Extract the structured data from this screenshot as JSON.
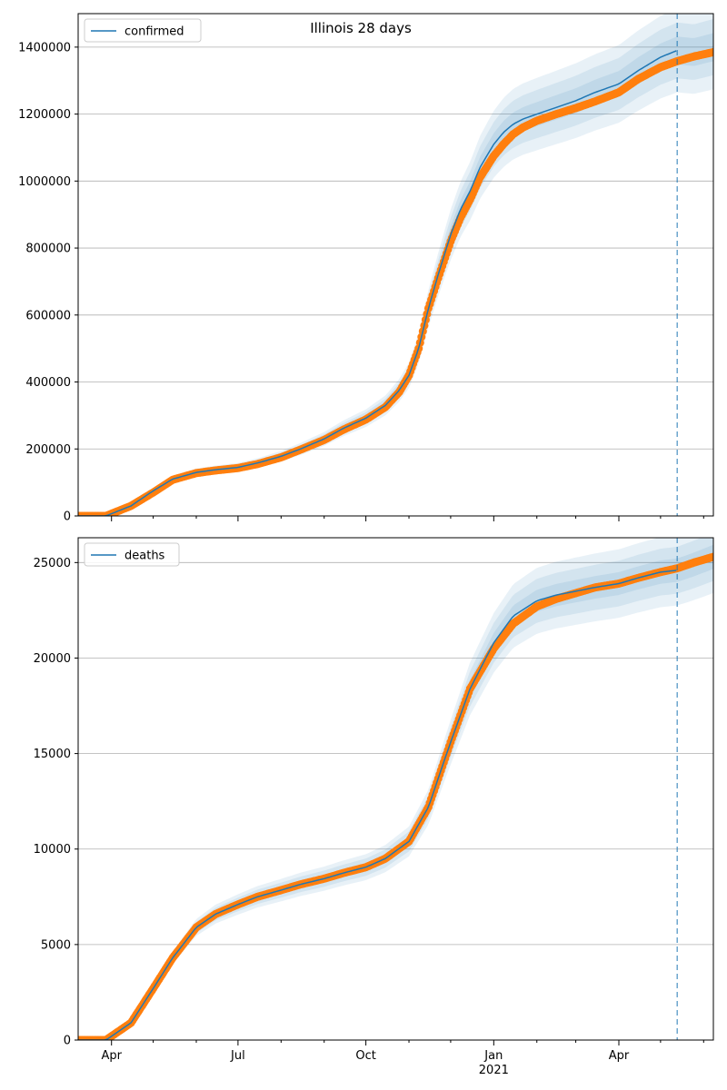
{
  "title": "Illinois 28 days",
  "colors": {
    "model_line": "#1f77b4",
    "band": "#1f77b4",
    "observed": "#ff7f0e",
    "grid": "#b0b0b0",
    "forecast_marker": "#1f77b4"
  },
  "x_axis": {
    "range": [
      "2020-03-08",
      "2021-06-08"
    ],
    "major_ticks": [
      {
        "date": "2020-04-01",
        "label": "Apr",
        "sublabel": ""
      },
      {
        "date": "2020-07-01",
        "label": "Jul",
        "sublabel": ""
      },
      {
        "date": "2020-10-01",
        "label": "Oct",
        "sublabel": ""
      },
      {
        "date": "2021-01-01",
        "label": "Jan",
        "sublabel": "2021"
      },
      {
        "date": "2021-04-01",
        "label": "Apr",
        "sublabel": ""
      }
    ],
    "minor_ticks": [
      "2020-05-01",
      "2020-06-01",
      "2020-08-01",
      "2020-09-01",
      "2020-11-01",
      "2020-12-01",
      "2021-02-01",
      "2021-03-01",
      "2021-05-01",
      "2021-06-01"
    ],
    "forecast_start": "2021-05-13"
  },
  "chart_data": [
    {
      "type": "line",
      "legend": "confirmed",
      "legend_position": "top-left",
      "grid": "horizontal",
      "ylim": [
        0,
        1500000
      ],
      "yticks": [
        0,
        200000,
        400000,
        600000,
        800000,
        1000000,
        1200000,
        1400000
      ],
      "ytick_labels": [
        "0",
        "200000",
        "400000",
        "600000",
        "800000",
        "1000000",
        "1200000",
        "1400000"
      ],
      "model": {
        "name": "confirmed",
        "dates": [
          "2020-03-08",
          "2020-03-28",
          "2020-04-15",
          "2020-05-01",
          "2020-05-15",
          "2020-06-01",
          "2020-06-15",
          "2020-07-01",
          "2020-07-15",
          "2020-08-01",
          "2020-08-15",
          "2020-09-01",
          "2020-09-15",
          "2020-10-01",
          "2020-10-15",
          "2020-10-25",
          "2020-11-01",
          "2020-11-08",
          "2020-11-15",
          "2020-11-22",
          "2020-12-01",
          "2020-12-08",
          "2020-12-15",
          "2020-12-22",
          "2021-01-01",
          "2021-01-08",
          "2021-01-15",
          "2021-01-22",
          "2021-02-01",
          "2021-02-15",
          "2021-03-01",
          "2021-03-15",
          "2021-04-01",
          "2021-04-15",
          "2021-05-01",
          "2021-05-13"
        ],
        "values": [
          0,
          0,
          30000,
          75000,
          110000,
          130000,
          138000,
          145000,
          158000,
          178000,
          200000,
          230000,
          262000,
          292000,
          330000,
          375000,
          420000,
          500000,
          620000,
          720000,
          840000,
          915000,
          970000,
          1040000,
          1110000,
          1145000,
          1170000,
          1185000,
          1200000,
          1220000,
          1240000,
          1265000,
          1290000,
          1330000,
          1370000,
          1390000
        ]
      },
      "model_tail": {
        "dates": [
          "2021-05-13",
          "2021-05-25",
          "2021-06-08"
        ],
        "values": [
          1390000,
          1385000,
          1400000
        ]
      },
      "band_scale": [
        0.03,
        0.06,
        0.09
      ],
      "observed": {
        "dates": [
          "2020-03-08",
          "2020-03-28",
          "2020-04-15",
          "2020-05-01",
          "2020-05-15",
          "2020-06-01",
          "2020-06-15",
          "2020-07-01",
          "2020-07-15",
          "2020-08-01",
          "2020-08-15",
          "2020-09-01",
          "2020-09-15",
          "2020-10-01",
          "2020-10-15",
          "2020-10-25",
          "2020-11-01",
          "2020-11-08",
          "2020-11-15",
          "2020-11-22",
          "2020-12-01",
          "2020-12-08",
          "2020-12-15",
          "2020-12-22",
          "2021-01-01",
          "2021-01-08",
          "2021-01-15",
          "2021-01-22",
          "2021-02-01",
          "2021-02-15",
          "2021-03-01",
          "2021-03-15",
          "2021-04-01",
          "2021-04-15",
          "2021-05-01",
          "2021-05-13",
          "2021-05-25",
          "2021-06-08"
        ],
        "values": [
          0,
          0,
          30000,
          70000,
          108000,
          128000,
          136000,
          143000,
          155000,
          175000,
          198000,
          227000,
          258000,
          288000,
          325000,
          370000,
          420000,
          500000,
          620000,
          710000,
          820000,
          890000,
          945000,
          1010000,
          1075000,
          1110000,
          1140000,
          1160000,
          1180000,
          1200000,
          1218000,
          1238000,
          1265000,
          1305000,
          1340000,
          1358000,
          1372000,
          1385000
        ]
      }
    },
    {
      "type": "line",
      "legend": "deaths",
      "legend_position": "top-left",
      "grid": "horizontal",
      "ylim": [
        0,
        26300
      ],
      "yticks": [
        0,
        5000,
        10000,
        15000,
        20000,
        25000
      ],
      "ytick_labels": [
        "0",
        "5000",
        "10000",
        "15000",
        "20000",
        "25000"
      ],
      "model": {
        "name": "deaths",
        "dates": [
          "2020-03-08",
          "2020-03-28",
          "2020-04-15",
          "2020-05-01",
          "2020-05-15",
          "2020-06-01",
          "2020-06-15",
          "2020-07-01",
          "2020-07-15",
          "2020-08-01",
          "2020-08-15",
          "2020-09-01",
          "2020-09-15",
          "2020-10-01",
          "2020-10-15",
          "2020-11-01",
          "2020-11-15",
          "2020-12-01",
          "2020-12-15",
          "2021-01-01",
          "2021-01-15",
          "2021-02-01",
          "2021-02-15",
          "2021-03-01",
          "2021-03-15",
          "2021-04-01",
          "2021-04-15",
          "2021-05-01",
          "2021-05-13"
        ],
        "values": [
          0,
          0,
          900,
          2700,
          4300,
          5900,
          6600,
          7100,
          7500,
          7850,
          8150,
          8450,
          8750,
          9050,
          9500,
          10400,
          12200,
          15600,
          18400,
          20800,
          22200,
          23000,
          23300,
          23500,
          23700,
          23900,
          24200,
          24500,
          24600
        ]
      },
      "model_tail": {
        "dates": [
          "2021-05-13",
          "2021-05-25",
          "2021-06-08"
        ],
        "values": [
          24600,
          24900,
          25300
        ]
      },
      "band_scale": [
        0.025,
        0.05,
        0.075
      ],
      "observed": {
        "dates": [
          "2020-03-08",
          "2020-03-28",
          "2020-04-15",
          "2020-05-01",
          "2020-05-15",
          "2020-06-01",
          "2020-06-15",
          "2020-07-01",
          "2020-07-15",
          "2020-08-01",
          "2020-08-15",
          "2020-09-01",
          "2020-09-15",
          "2020-10-01",
          "2020-10-15",
          "2020-11-01",
          "2020-11-15",
          "2020-12-01",
          "2020-12-15",
          "2021-01-01",
          "2021-01-15",
          "2021-02-01",
          "2021-02-15",
          "2021-03-01",
          "2021-03-15",
          "2021-04-01",
          "2021-04-15",
          "2021-05-01",
          "2021-05-13",
          "2021-05-25",
          "2021-06-08"
        ],
        "values": [
          0,
          0,
          900,
          2700,
          4300,
          5900,
          6600,
          7100,
          7500,
          7850,
          8150,
          8450,
          8750,
          9050,
          9500,
          10400,
          12200,
          15600,
          18400,
          20500,
          21800,
          22700,
          23100,
          23400,
          23700,
          23900,
          24200,
          24500,
          24700,
          25000,
          25300
        ]
      }
    }
  ]
}
